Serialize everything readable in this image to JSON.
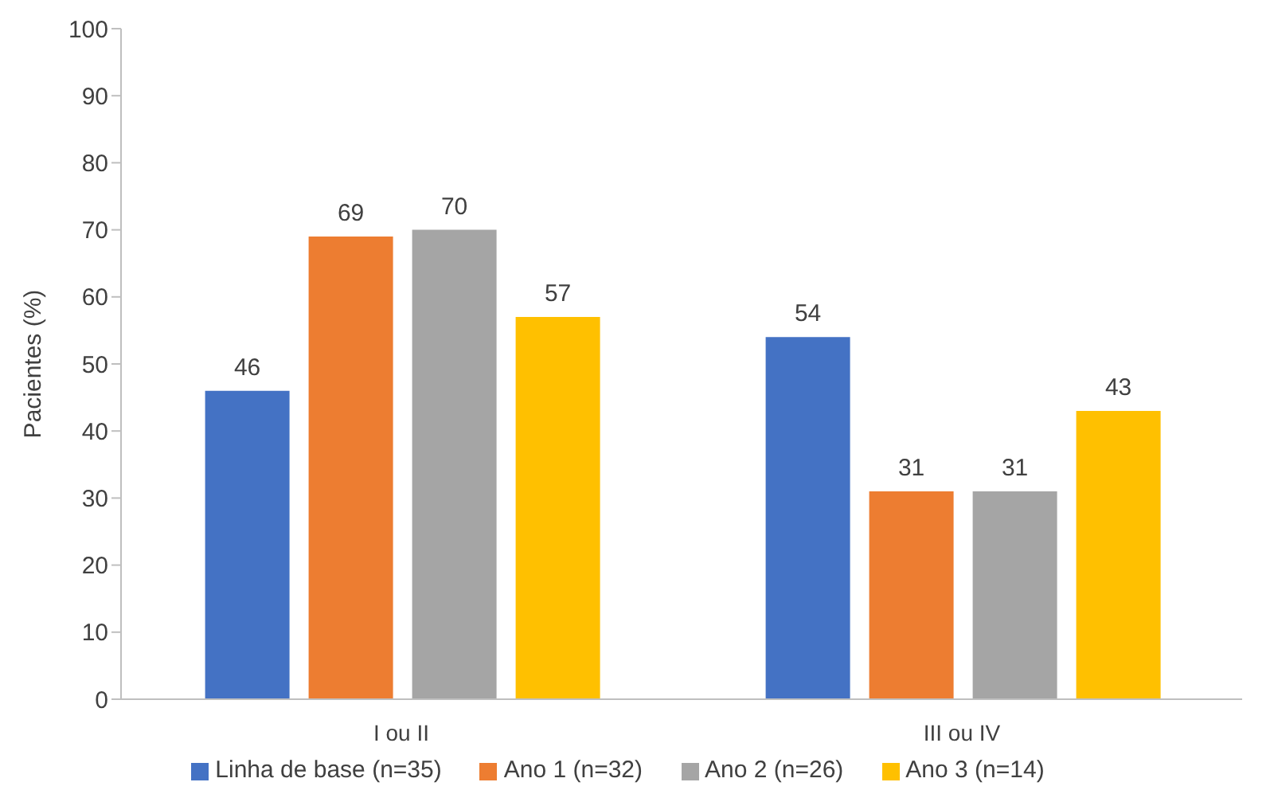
{
  "chart_data": {
    "type": "bar",
    "ylabel": "Pacientes (%)",
    "categories": [
      "I ou II",
      "III ou IV"
    ],
    "series": [
      {
        "name": "Linha de base (n=35)",
        "color": "#4472c4",
        "values": [
          46,
          54
        ]
      },
      {
        "name": "Ano 1 (n=32)",
        "color": "#ed7d31",
        "values": [
          69,
          31
        ]
      },
      {
        "name": "Ano 2 (n=26)",
        "color": "#a5a5a5",
        "values": [
          70,
          31
        ]
      },
      {
        "name": "Ano 3 (n=14)",
        "color": "#ffc000",
        "values": [
          57,
          43
        ]
      }
    ],
    "ylim": [
      0,
      100
    ],
    "yticks": [
      0,
      10,
      20,
      30,
      40,
      50,
      60,
      70,
      80,
      90,
      100
    ],
    "grid": false,
    "legend": "bottom",
    "data_labels": true
  }
}
